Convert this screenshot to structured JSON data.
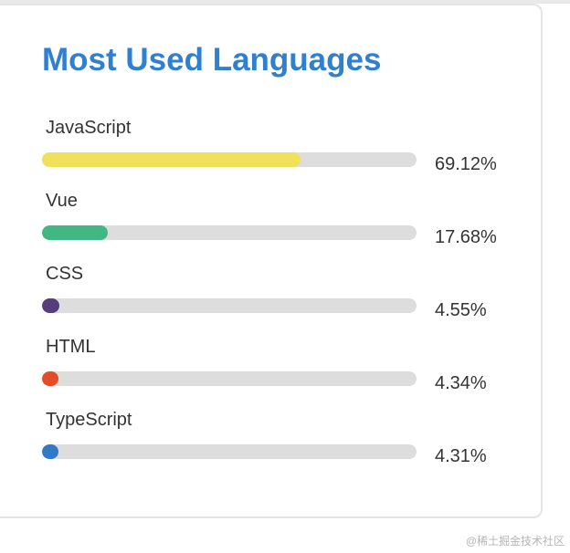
{
  "card": {
    "title": "Most Used Languages"
  },
  "languages": [
    {
      "name": "JavaScript",
      "percent_label": "69.12%",
      "percent": 69.12,
      "color": "#f1e05a"
    },
    {
      "name": "Vue",
      "percent_label": "17.68%",
      "percent": 17.68,
      "color": "#41b883"
    },
    {
      "name": "CSS",
      "percent_label": "4.55%",
      "percent": 4.55,
      "color": "#563d7c"
    },
    {
      "name": "HTML",
      "percent_label": "4.34%",
      "percent": 4.34,
      "color": "#e34c26"
    },
    {
      "name": "TypeScript",
      "percent_label": "4.31%",
      "percent": 4.31,
      "color": "#3178c6"
    }
  ],
  "watermark": "@稀土掘金技术社区"
}
